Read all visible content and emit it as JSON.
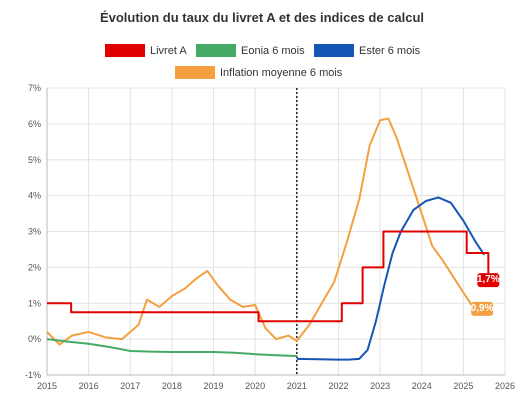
{
  "chart_data": {
    "type": "line",
    "title": "Évolution du taux du livret A et des indices de calcul",
    "xlim": [
      2015,
      2026
    ],
    "ylim": [
      -1,
      7
    ],
    "x_ticks": [
      "2015",
      "2016",
      "2017",
      "2018",
      "2019",
      "2020",
      "2021",
      "2022",
      "2023",
      "2024",
      "2025",
      "2026"
    ],
    "y_ticks": [
      "-1%",
      "0%",
      "1%",
      "2%",
      "3%",
      "4%",
      "5%",
      "6%",
      "7%"
    ],
    "grid": true,
    "legend_position": "top",
    "vertical_marker_x": 2021.0,
    "series": [
      {
        "name": "Livret A",
        "color": "#e00000",
        "step": true,
        "x": [
          2015.0,
          2015.58,
          2020.08,
          2022.08,
          2022.58,
          2023.08,
          2025.08,
          2025.58,
          2025.6
        ],
        "y": [
          1.0,
          0.75,
          0.5,
          1.0,
          2.0,
          3.0,
          2.4,
          2.4,
          1.7
        ]
      },
      {
        "name": "Eonia 6 mois",
        "color": "#44aa66",
        "step": false,
        "x": [
          2015.0,
          2015.5,
          2016.0,
          2016.5,
          2017.0,
          2017.5,
          2018.0,
          2018.5,
          2019.0,
          2019.5,
          2020.0,
          2020.5,
          2021.0
        ],
        "y": [
          0.0,
          -0.07,
          -0.13,
          -0.22,
          -0.33,
          -0.35,
          -0.36,
          -0.36,
          -0.36,
          -0.38,
          -0.42,
          -0.45,
          -0.47
        ]
      },
      {
        "name": "Ester 6 mois",
        "color": "#1555b5",
        "step": false,
        "x": [
          2021.0,
          2021.5,
          2022.0,
          2022.25,
          2022.5,
          2022.7,
          2022.9,
          2023.1,
          2023.3,
          2023.5,
          2023.8,
          2024.1,
          2024.4,
          2024.7,
          2025.0,
          2025.3,
          2025.5
        ],
        "y": [
          -0.55,
          -0.56,
          -0.57,
          -0.57,
          -0.55,
          -0.3,
          0.5,
          1.5,
          2.4,
          3.0,
          3.6,
          3.85,
          3.95,
          3.8,
          3.3,
          2.7,
          2.35
        ]
      },
      {
        "name": "Inflation moyenne 6 mois",
        "color": "#f5a040",
        "step": false,
        "x": [
          2015.0,
          2015.3,
          2015.6,
          2016.0,
          2016.4,
          2016.8,
          2017.2,
          2017.4,
          2017.7,
          2018.0,
          2018.3,
          2018.6,
          2018.85,
          2019.1,
          2019.4,
          2019.7,
          2020.0,
          2020.25,
          2020.5,
          2020.8,
          2021.0,
          2021.3,
          2021.6,
          2021.9,
          2022.2,
          2022.5,
          2022.75,
          2023.0,
          2023.2,
          2023.4,
          2023.6,
          2023.8,
          2024.0,
          2024.25,
          2024.5,
          2024.75,
          2025.0,
          2025.2
        ],
        "y": [
          0.2,
          -0.15,
          0.1,
          0.2,
          0.05,
          0.0,
          0.4,
          1.1,
          0.9,
          1.2,
          1.4,
          1.7,
          1.9,
          1.5,
          1.1,
          0.9,
          0.95,
          0.3,
          0.0,
          0.1,
          -0.05,
          0.4,
          1.0,
          1.6,
          2.7,
          3.9,
          5.4,
          6.1,
          6.15,
          5.6,
          4.9,
          4.2,
          3.5,
          2.6,
          2.2,
          1.75,
          1.3,
          0.95
        ]
      }
    ],
    "annotations": [
      {
        "label": "1,7%",
        "x": 2025.6,
        "y": 1.7,
        "color": "#e00000"
      },
      {
        "label": "0,9%",
        "x": 2025.45,
        "y": 0.9,
        "color": "#f5a040"
      }
    ]
  }
}
